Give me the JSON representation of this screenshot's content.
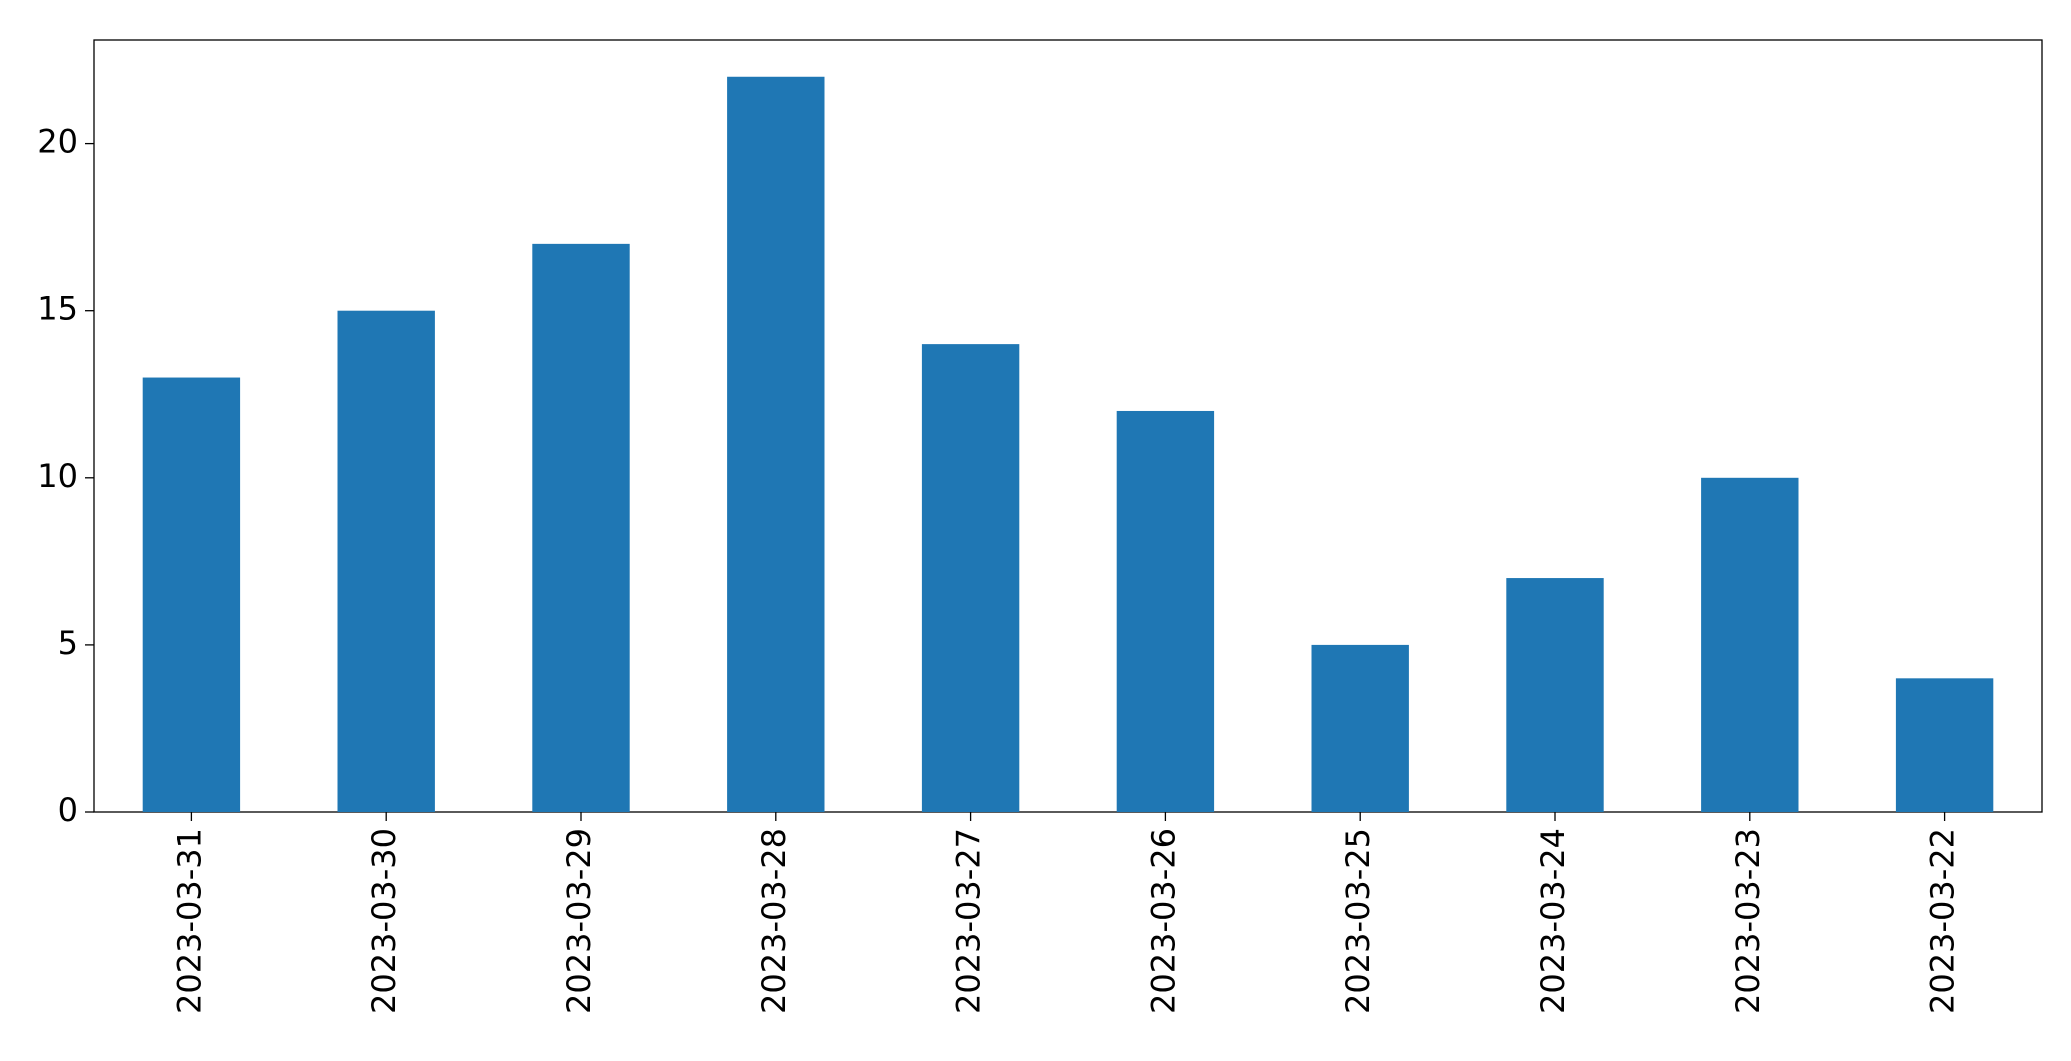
{
  "chart_data": {
    "type": "bar",
    "categories": [
      "2023-03-31",
      "2023-03-30",
      "2023-03-29",
      "2023-03-28",
      "2023-03-27",
      "2023-03-26",
      "2023-03-25",
      "2023-03-24",
      "2023-03-23",
      "2023-03-22"
    ],
    "values": [
      13,
      15,
      17,
      22,
      14,
      12,
      5,
      7,
      10,
      4
    ],
    "color": "#1f77b4",
    "ylim": [
      0,
      23.1
    ],
    "yticks": [
      0,
      5,
      10,
      15,
      20
    ],
    "grid": false
  }
}
